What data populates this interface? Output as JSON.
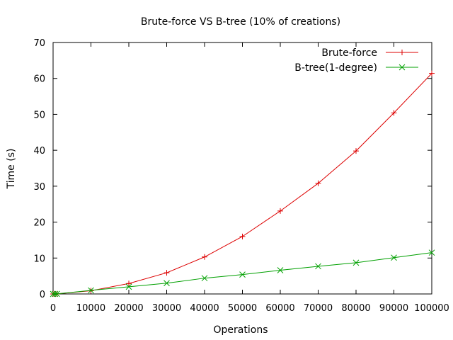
{
  "chart_data": {
    "type": "line",
    "title": "Brute-force VS B-tree (10% of creations)",
    "xlabel": "Operations",
    "ylabel": "Time (s)",
    "xlim": [
      0,
      100000
    ],
    "ylim": [
      0,
      70
    ],
    "xticks": [
      0,
      10000,
      20000,
      30000,
      40000,
      50000,
      60000,
      70000,
      80000,
      90000,
      100000
    ],
    "yticks": [
      0,
      10,
      20,
      30,
      40,
      50,
      60,
      70
    ],
    "grid": false,
    "legend_position": "top-right",
    "x": [
      0,
      500,
      1000,
      10000,
      20000,
      30000,
      40000,
      50000,
      60000,
      70000,
      80000,
      90000,
      100000
    ],
    "series": [
      {
        "name": "Brute-force",
        "color": "#dd0000",
        "marker": "plus",
        "values": [
          0,
          0.01,
          0.02,
          0.9,
          2.9,
          5.9,
          10.3,
          16.0,
          23.1,
          30.8,
          39.8,
          50.4,
          61.4
        ]
      },
      {
        "name": "B-tree(1-degree)",
        "color": "#00a000",
        "marker": "cross",
        "values": [
          0,
          0.01,
          0.02,
          1.0,
          2.0,
          3.0,
          4.4,
          5.4,
          6.6,
          7.7,
          8.7,
          10.1,
          11.5
        ]
      }
    ]
  }
}
